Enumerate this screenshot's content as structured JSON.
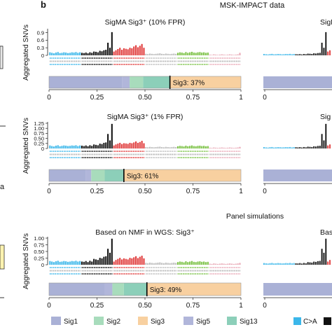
{
  "figure": {
    "panel_label": "b",
    "section_top": "MSK-IMPACT data",
    "section_bottom": "Panel simulations"
  },
  "colors": {
    "CA": "#3bb7ea",
    "CG": "#111111",
    "CT": "#e03a3a",
    "TA": "#bdbdbd",
    "TC": "#7ac143",
    "TG": "#e8a7b4",
    "Sig1": "#aab1d6",
    "Sig2": "#a8dcbc",
    "Sig3": "#f8d0a0",
    "Sig5": "#b1b6da",
    "Sig13": "#8ccfb9"
  },
  "legend": {
    "items": [
      {
        "label": "Sig1",
        "color": "#aab1d6"
      },
      {
        "label": "Sig2",
        "color": "#a8dcbc"
      },
      {
        "label": "Sig3",
        "color": "#f8d0a0"
      },
      {
        "label": "Sig5",
        "color": "#b1b6da"
      },
      {
        "label": "Sig13",
        "color": "#8ccfb9"
      }
    ],
    "partial_items": [
      {
        "label": "C>A",
        "color": "#3bb7ea"
      },
      {
        "label": "",
        "color": "#111111"
      }
    ]
  },
  "chart_data": [
    {
      "type": "bar",
      "title": "SigMA Sig3⁺ (10% FPR)",
      "ylabel": "Aggregated SNVs",
      "ylim": [
        0,
        1.0
      ],
      "yticks": [
        "0",
        "0.3",
        "0.6",
        "0.9"
      ],
      "ytick_values": [
        0,
        0.3,
        0.6,
        0.9
      ],
      "categories": "96 trinucleotide contexts in groups C>A, C>G, C>T, T>A, T>C, T>G",
      "values": [
        0.12,
        0.1,
        0.08,
        0.11,
        0.13,
        0.09,
        0.1,
        0.12,
        0.11,
        0.09,
        0.1,
        0.12,
        0.11,
        0.13,
        0.1,
        0.12,
        0.1,
        0.09,
        0.11,
        0.08,
        0.12,
        0.1,
        0.15,
        0.14,
        0.12,
        0.18,
        0.16,
        0.2,
        0.22,
        0.5,
        0.3,
        0.92,
        0.15,
        0.2,
        0.25,
        0.3,
        0.22,
        0.28,
        0.26,
        0.24,
        0.3,
        0.28,
        0.35,
        0.4,
        0.32,
        0.38,
        0.45,
        0.3,
        0.06,
        0.05,
        0.07,
        0.06,
        0.05,
        0.06,
        0.07,
        0.08,
        0.06,
        0.05,
        0.07,
        0.06,
        0.05,
        0.06,
        0.07,
        0.06,
        0.1,
        0.12,
        0.11,
        0.09,
        0.13,
        0.1,
        0.12,
        0.14,
        0.11,
        0.1,
        0.12,
        0.13,
        0.11,
        0.12,
        0.1,
        0.11,
        0.03,
        0.02,
        0.04,
        0.03,
        0.02,
        0.03,
        0.04,
        0.03,
        0.02,
        0.03,
        0.04,
        0.03,
        0.02,
        0.03,
        0.04,
        0.1
      ],
      "composition": [
        {
          "sig": "Sig1",
          "frac": 0.38
        },
        {
          "sig": "Sig5",
          "frac": 0.04
        },
        {
          "sig": "Sig2",
          "frac": 0.07
        },
        {
          "sig": "Sig13",
          "frac": 0.14
        },
        {
          "sig": "Sig3",
          "frac": 0.37
        }
      ],
      "composition_label": "Sig3: 37%",
      "xticks": [
        "0",
        "0.25",
        "0.50",
        "0.75",
        "1"
      ],
      "xtick_values": [
        0,
        0.25,
        0.5,
        0.75,
        1
      ]
    },
    {
      "type": "bar",
      "title": "SigMA Sig3⁺ (1% FPR)",
      "ylabel": "Aggregated SNVs",
      "ylim": [
        0,
        1.25
      ],
      "yticks": [
        "0",
        "0.25",
        "0.50",
        "0.75",
        "1.00",
        "1.25"
      ],
      "ytick_values": [
        0,
        0.25,
        0.5,
        0.75,
        1.0,
        1.25
      ],
      "categories": "96 trinucleotide contexts in groups C>A, C>G, C>T, T>A, T>C, T>G",
      "values": [
        0.15,
        0.12,
        0.1,
        0.14,
        0.16,
        0.11,
        0.13,
        0.15,
        0.14,
        0.12,
        0.13,
        0.15,
        0.14,
        0.16,
        0.12,
        0.15,
        0.14,
        0.12,
        0.15,
        0.11,
        0.16,
        0.13,
        0.2,
        0.18,
        0.16,
        0.24,
        0.22,
        0.28,
        0.3,
        0.72,
        0.4,
        1.22,
        0.15,
        0.2,
        0.24,
        0.28,
        0.22,
        0.26,
        0.25,
        0.23,
        0.28,
        0.26,
        0.3,
        0.35,
        0.28,
        0.32,
        0.38,
        0.26,
        0.07,
        0.06,
        0.08,
        0.07,
        0.06,
        0.07,
        0.08,
        0.09,
        0.07,
        0.06,
        0.08,
        0.07,
        0.06,
        0.07,
        0.08,
        0.07,
        0.11,
        0.13,
        0.12,
        0.1,
        0.14,
        0.11,
        0.13,
        0.15,
        0.12,
        0.11,
        0.13,
        0.14,
        0.12,
        0.13,
        0.11,
        0.12,
        0.04,
        0.03,
        0.05,
        0.04,
        0.03,
        0.04,
        0.05,
        0.04,
        0.03,
        0.04,
        0.05,
        0.04,
        0.03,
        0.04,
        0.05,
        0.08
      ],
      "composition": [
        {
          "sig": "Sig1",
          "frac": 0.19
        },
        {
          "sig": "Sig5",
          "frac": 0.03
        },
        {
          "sig": "Sig2",
          "frac": 0.07
        },
        {
          "sig": "Sig13",
          "frac": 0.1
        },
        {
          "sig": "Sig3",
          "frac": 0.61
        }
      ],
      "composition_label": "Sig3: 61%",
      "xticks": [
        "0",
        "0.25",
        "0.50",
        "0.75",
        "1"
      ],
      "xtick_values": [
        0,
        0.25,
        0.5,
        0.75,
        1
      ]
    },
    {
      "type": "bar",
      "title": "Based on NMF in WGS: Sig3⁺",
      "ylabel": "Aggregated SNVs",
      "ylim": [
        0,
        1.0
      ],
      "yticks": [
        "0",
        "0.25",
        "0.50",
        "0.75",
        "1.00"
      ],
      "ytick_values": [
        0,
        0.25,
        0.5,
        0.75,
        1.0
      ],
      "categories": "96 trinucleotide contexts in groups C>A, C>G, C>T, T>A, T>C, T>G",
      "values": [
        0.14,
        0.12,
        0.1,
        0.13,
        0.15,
        0.11,
        0.12,
        0.14,
        0.13,
        0.11,
        0.12,
        0.14,
        0.13,
        0.15,
        0.12,
        0.14,
        0.12,
        0.11,
        0.14,
        0.1,
        0.15,
        0.12,
        0.22,
        0.2,
        0.18,
        0.26,
        0.24,
        0.3,
        0.32,
        0.6,
        0.45,
        0.98,
        0.12,
        0.18,
        0.22,
        0.26,
        0.2,
        0.24,
        0.22,
        0.2,
        0.26,
        0.24,
        0.28,
        0.32,
        0.25,
        0.3,
        0.34,
        0.24,
        0.07,
        0.06,
        0.08,
        0.07,
        0.06,
        0.07,
        0.08,
        0.09,
        0.07,
        0.06,
        0.08,
        0.07,
        0.06,
        0.07,
        0.08,
        0.07,
        0.1,
        0.12,
        0.11,
        0.09,
        0.13,
        0.1,
        0.12,
        0.14,
        0.11,
        0.1,
        0.12,
        0.13,
        0.11,
        0.12,
        0.1,
        0.11,
        0.04,
        0.03,
        0.05,
        0.04,
        0.03,
        0.04,
        0.05,
        0.04,
        0.03,
        0.04,
        0.05,
        0.04,
        0.03,
        0.04,
        0.05,
        0.07
      ],
      "composition": [
        {
          "sig": "Sig1",
          "frac": 0.29
        },
        {
          "sig": "Sig5",
          "frac": 0.04
        },
        {
          "sig": "Sig2",
          "frac": 0.06
        },
        {
          "sig": "Sig13",
          "frac": 0.12
        },
        {
          "sig": "Sig3",
          "frac": 0.49
        }
      ],
      "composition_label": "Sig3: 49%",
      "xticks": [
        "0",
        "0.25",
        "0.50",
        "0.75",
        "1"
      ],
      "xtick_values": [
        0,
        0.25,
        0.5,
        0.75,
        1
      ]
    }
  ],
  "right_panels": [
    {
      "title": "SigM"
    },
    {
      "title": "Sig"
    },
    {
      "title": "Based"
    }
  ],
  "left_fragments": {
    "letter": "a"
  }
}
